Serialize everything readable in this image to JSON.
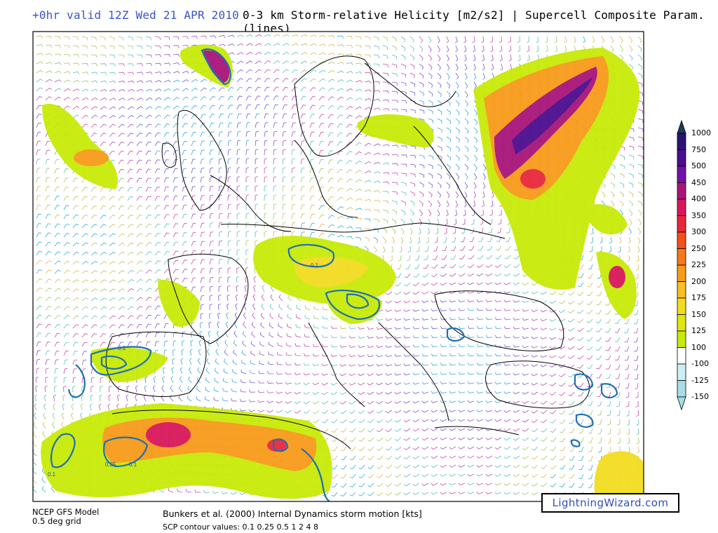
{
  "header": {
    "valid_time": "+0hr valid 12Z Wed 21 APR 2010",
    "title": "0-3 km Storm-relative Helicity [m2/s2] | Supercell Composite Param. (lines)"
  },
  "legend": {
    "colorbar": [
      {
        "label": "1000",
        "color": "#1d3c54"
      },
      {
        "label": "750",
        "color": "#2a1470"
      },
      {
        "label": "500",
        "color": "#4b0d8e"
      },
      {
        "label": "450",
        "color": "#7410a8"
      },
      {
        "label": "400",
        "color": "#a8157a"
      },
      {
        "label": "350",
        "color": "#d8185a"
      },
      {
        "label": "300",
        "color": "#e8283a"
      },
      {
        "label": "250",
        "color": "#f4501a"
      },
      {
        "label": "225",
        "color": "#f77818"
      },
      {
        "label": "200",
        "color": "#f89a1a"
      },
      {
        "label": "175",
        "color": "#f8bf24"
      },
      {
        "label": "150",
        "color": "#f2dc20"
      },
      {
        "label": "125",
        "color": "#dfe610"
      },
      {
        "label": "100",
        "color": "#c8ea08"
      },
      {
        "label": "-100",
        "color": "#ffffff"
      },
      {
        "label": "-125",
        "color": "#cdeef2"
      },
      {
        "label": "-150",
        "color": "#a8dce6"
      }
    ]
  },
  "contour_labels": [
    "0.1",
    "0.1",
    "0.1",
    "0.1",
    "0.25"
  ],
  "footer": {
    "model": "NCEP GFS Model",
    "grid": "0.5 deg grid",
    "storm_motion": "Bunkers et al. (2000) Internal Dynamics storm motion [kts]",
    "scp_values": "SCP contour values: 0.1 0.25 0.5 1 2 4 8",
    "brand": "LightningWizard.com"
  },
  "map": {
    "shaded_field": "0-3 km storm-relative helicity",
    "contour_field": "supercell composite parameter",
    "vector_field": "storm motion barbs"
  }
}
